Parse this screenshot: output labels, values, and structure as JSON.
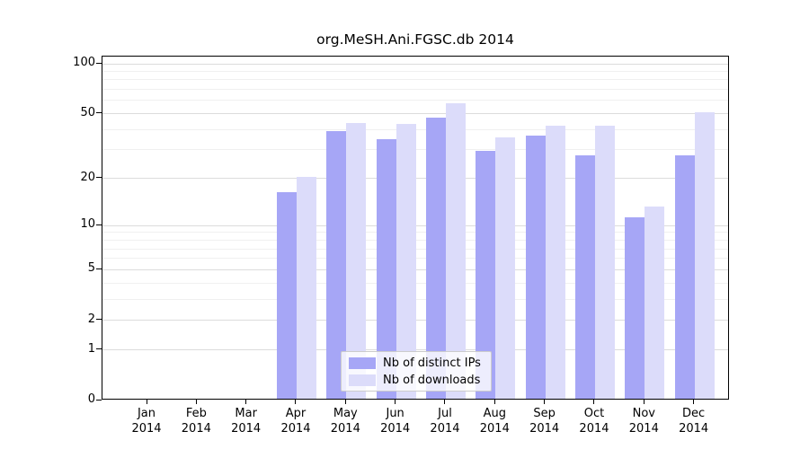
{
  "chart_data": {
    "type": "bar",
    "title": "org.MeSH.Ani.FGSC.db 2014",
    "categories": [
      "Jan",
      "Feb",
      "Mar",
      "Apr",
      "May",
      "Jun",
      "Jul",
      "Aug",
      "Sep",
      "Oct",
      "Nov",
      "Dec"
    ],
    "year_label": "2014",
    "series": [
      {
        "name": "Nb of distinct IPs",
        "color": "#a6a6f6",
        "values": [
          0,
          0,
          0,
          16,
          38,
          34,
          46,
          29,
          36,
          27,
          11,
          27
        ]
      },
      {
        "name": "Nb of downloads",
        "color": "#dcdcfa",
        "values": [
          0,
          0,
          0,
          20,
          43,
          42,
          56,
          35,
          41,
          41,
          13,
          50
        ]
      }
    ],
    "yscale": "log1p",
    "ylim": [
      0,
      110
    ],
    "yticks": [
      0,
      1,
      2,
      5,
      10,
      20,
      50,
      100
    ],
    "minor_gridlines": [
      3,
      4,
      6,
      7,
      8,
      9,
      30,
      40,
      60,
      70,
      80,
      90
    ],
    "grid": "on",
    "legend_position": "bottom-center",
    "colors": {
      "major_grid": "#dcdcdc",
      "minor_grid": "#f0f0f0",
      "axis": "#000000",
      "background": "#ffffff"
    }
  }
}
